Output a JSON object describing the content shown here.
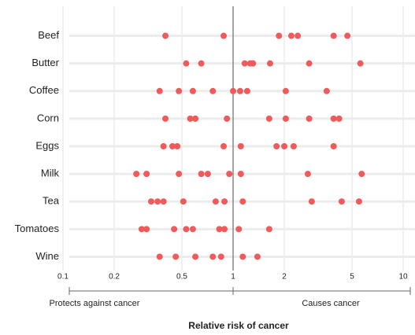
{
  "chart_data": {
    "type": "dot",
    "categories": [
      "Beef",
      "Butter",
      "Coffee",
      "Corn",
      "Eggs",
      "Milk",
      "Tea",
      "Tomatoes",
      "Wine"
    ],
    "values": [
      [
        0.4,
        0.88,
        1.86,
        2.2,
        2.4,
        3.9,
        4.7
      ],
      [
        0.53,
        0.65,
        1.17,
        1.26,
        1.31,
        1.65,
        2.8,
        5.6
      ],
      [
        0.37,
        0.48,
        0.58,
        0.76,
        1.0,
        1.1,
        1.21,
        2.04,
        3.55
      ],
      [
        0.4,
        0.56,
        0.6,
        0.92,
        1.63,
        2.04,
        2.8,
        3.9,
        4.2
      ],
      [
        0.39,
        0.44,
        0.47,
        0.88,
        1.11,
        1.8,
        2.0,
        2.27,
        3.9
      ],
      [
        0.27,
        0.31,
        0.48,
        0.65,
        0.71,
        0.95,
        1.11,
        2.75,
        5.7
      ],
      [
        0.33,
        0.36,
        0.39,
        0.51,
        0.79,
        0.89,
        1.14,
        2.9,
        4.35,
        5.5
      ],
      [
        0.29,
        0.31,
        0.45,
        0.53,
        0.58,
        0.83,
        0.89,
        1.08,
        1.63
      ],
      [
        0.37,
        0.46,
        0.6,
        0.76,
        0.85,
        1.14,
        1.39
      ]
    ],
    "color": "#f05a5a",
    "xlim": [
      0.1,
      10
    ],
    "xticks": [
      0.1,
      0.2,
      0.5,
      1,
      2,
      5,
      10
    ],
    "log_x": true,
    "reference_line": 1,
    "annotations": [
      "Protects against cancer",
      "Causes cancer"
    ],
    "x_label": "Relative risk of cancer"
  }
}
